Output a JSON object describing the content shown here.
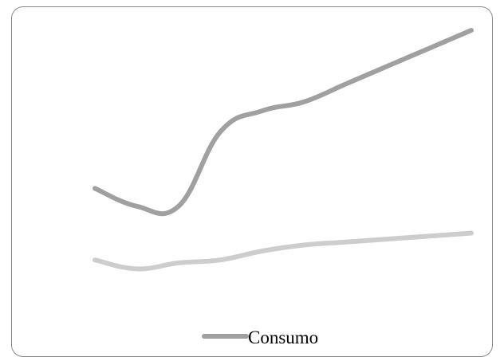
{
  "chart_data": {
    "type": "line",
    "title": "",
    "xlabel": "",
    "ylabel": "",
    "x": [
      1,
      2,
      3,
      4,
      5,
      6,
      7,
      8,
      9,
      10
    ],
    "ylim": [
      0,
      100
    ],
    "grid": false,
    "legend_position": "bottom",
    "series": [
      {
        "name": "Consumo",
        "color": "#a0a0a0",
        "values": [
          52,
          46,
          46,
          71,
          78,
          81,
          87,
          93,
          99,
          105
        ]
      },
      {
        "color": "#cdcdcd",
        "values": [
          28,
          25,
          27,
          28,
          31,
          33,
          34,
          35,
          36,
          37
        ]
      }
    ],
    "legend": [
      {
        "label": "Consumo",
        "color": "#a0a0a0"
      }
    ]
  }
}
